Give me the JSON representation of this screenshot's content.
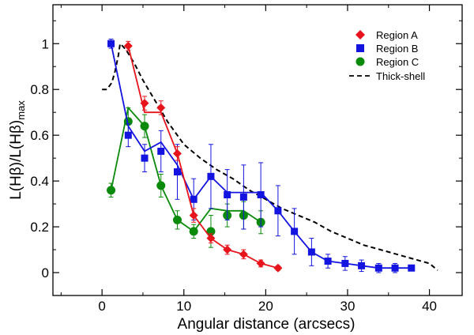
{
  "chart_data": {
    "type": "line",
    "title": "",
    "xlabel": "Angular distance (arcsecs)",
    "ylabel_main": "L(Hβ)/L(Hβ)",
    "ylabel_sub": "max",
    "xlim": [
      -6,
      44
    ],
    "ylim": [
      -0.1,
      1.17
    ],
    "xticks": [
      0,
      10,
      20,
      30,
      40
    ],
    "yticks": [
      0,
      0.2,
      0.4,
      0.6,
      0.8,
      1
    ],
    "ytick_labels": [
      "0",
      "0.2",
      "0.4",
      "0.6",
      "0.8",
      "1"
    ],
    "legend_position": "top-right",
    "series": [
      {
        "name": "Region A",
        "color": "#e8141c",
        "marker": "diamond",
        "line": "solid",
        "x": [
          3.2,
          5.2,
          7.2,
          9.2,
          11.2,
          13.3,
          15.3,
          17.3,
          19.4,
          21.5
        ],
        "y": [
          0.99,
          0.74,
          0.72,
          0.52,
          0.25,
          0.15,
          0.1,
          0.08,
          0.04,
          0.02
        ],
        "err": [
          0.02,
          0.03,
          0.03,
          0.03,
          0.03,
          0.02,
          0.02,
          0.02,
          0.015,
          0.01
        ],
        "line_y": [
          0.99,
          0.7,
          0.7,
          0.52,
          0.25,
          0.15,
          0.1,
          0.08,
          0.04,
          0.02
        ]
      },
      {
        "name": "Region B",
        "color": "#1414e0",
        "marker": "square",
        "line": "solid",
        "x": [
          1.1,
          3.2,
          5.2,
          7.2,
          9.2,
          11.2,
          13.3,
          15.3,
          17.3,
          19.4,
          21.5,
          23.5,
          25.6,
          27.6,
          29.7,
          31.7,
          33.8,
          35.8,
          37.8
        ],
        "y": [
          1.0,
          0.6,
          0.5,
          0.53,
          0.44,
          0.32,
          0.42,
          0.34,
          0.33,
          0.34,
          0.27,
          0.18,
          0.09,
          0.05,
          0.04,
          0.03,
          0.02,
          0.02,
          0.02
        ],
        "err": [
          0.02,
          0.05,
          0.06,
          0.09,
          0.12,
          0.09,
          0.14,
          0.11,
          0.14,
          0.14,
          0.11,
          0.1,
          0.06,
          0.03,
          0.03,
          0.025,
          0.02,
          0.02,
          0.01
        ],
        "line_y": [
          1.0,
          0.64,
          0.53,
          0.57,
          0.47,
          0.32,
          0.42,
          0.35,
          0.35,
          0.35,
          0.27,
          0.18,
          0.09,
          0.05,
          0.04,
          0.03,
          0.02,
          0.02,
          0.02
        ]
      },
      {
        "name": "Region C",
        "color": "#0a8a0a",
        "marker": "circle",
        "line": "solid",
        "x": [
          1.1,
          3.2,
          5.2,
          7.2,
          9.2,
          11.2,
          13.3,
          15.3,
          17.3,
          19.4
        ],
        "y": [
          0.36,
          0.66,
          0.64,
          0.38,
          0.23,
          0.18,
          0.18,
          0.25,
          0.25,
          0.22
        ],
        "err": [
          0.03,
          0.06,
          0.05,
          0.05,
          0.04,
          0.03,
          0.07,
          0.05,
          0.06,
          0.05
        ],
        "line_y": [
          0.36,
          0.72,
          0.64,
          0.38,
          0.23,
          0.18,
          0.28,
          0.27,
          0.27,
          0.22
        ]
      },
      {
        "name": "Thick-shell",
        "color": "#000000",
        "marker": "none",
        "line": "dashed",
        "x": [
          0,
          0.6,
          1.2,
          1.6,
          2.0,
          2.2,
          2.5,
          3.0,
          4,
          5,
          6,
          7,
          8,
          9,
          10,
          12,
          14,
          16,
          18,
          20,
          22,
          24,
          26,
          28,
          30,
          32,
          34,
          36,
          38,
          40,
          41
        ],
        "y": [
          0.8,
          0.8,
          0.83,
          0.88,
          0.95,
          1.0,
          0.99,
          0.97,
          0.91,
          0.84,
          0.78,
          0.72,
          0.66,
          0.61,
          0.56,
          0.5,
          0.45,
          0.41,
          0.36,
          0.32,
          0.28,
          0.25,
          0.22,
          0.18,
          0.15,
          0.12,
          0.1,
          0.08,
          0.06,
          0.04,
          0.01
        ]
      }
    ]
  }
}
